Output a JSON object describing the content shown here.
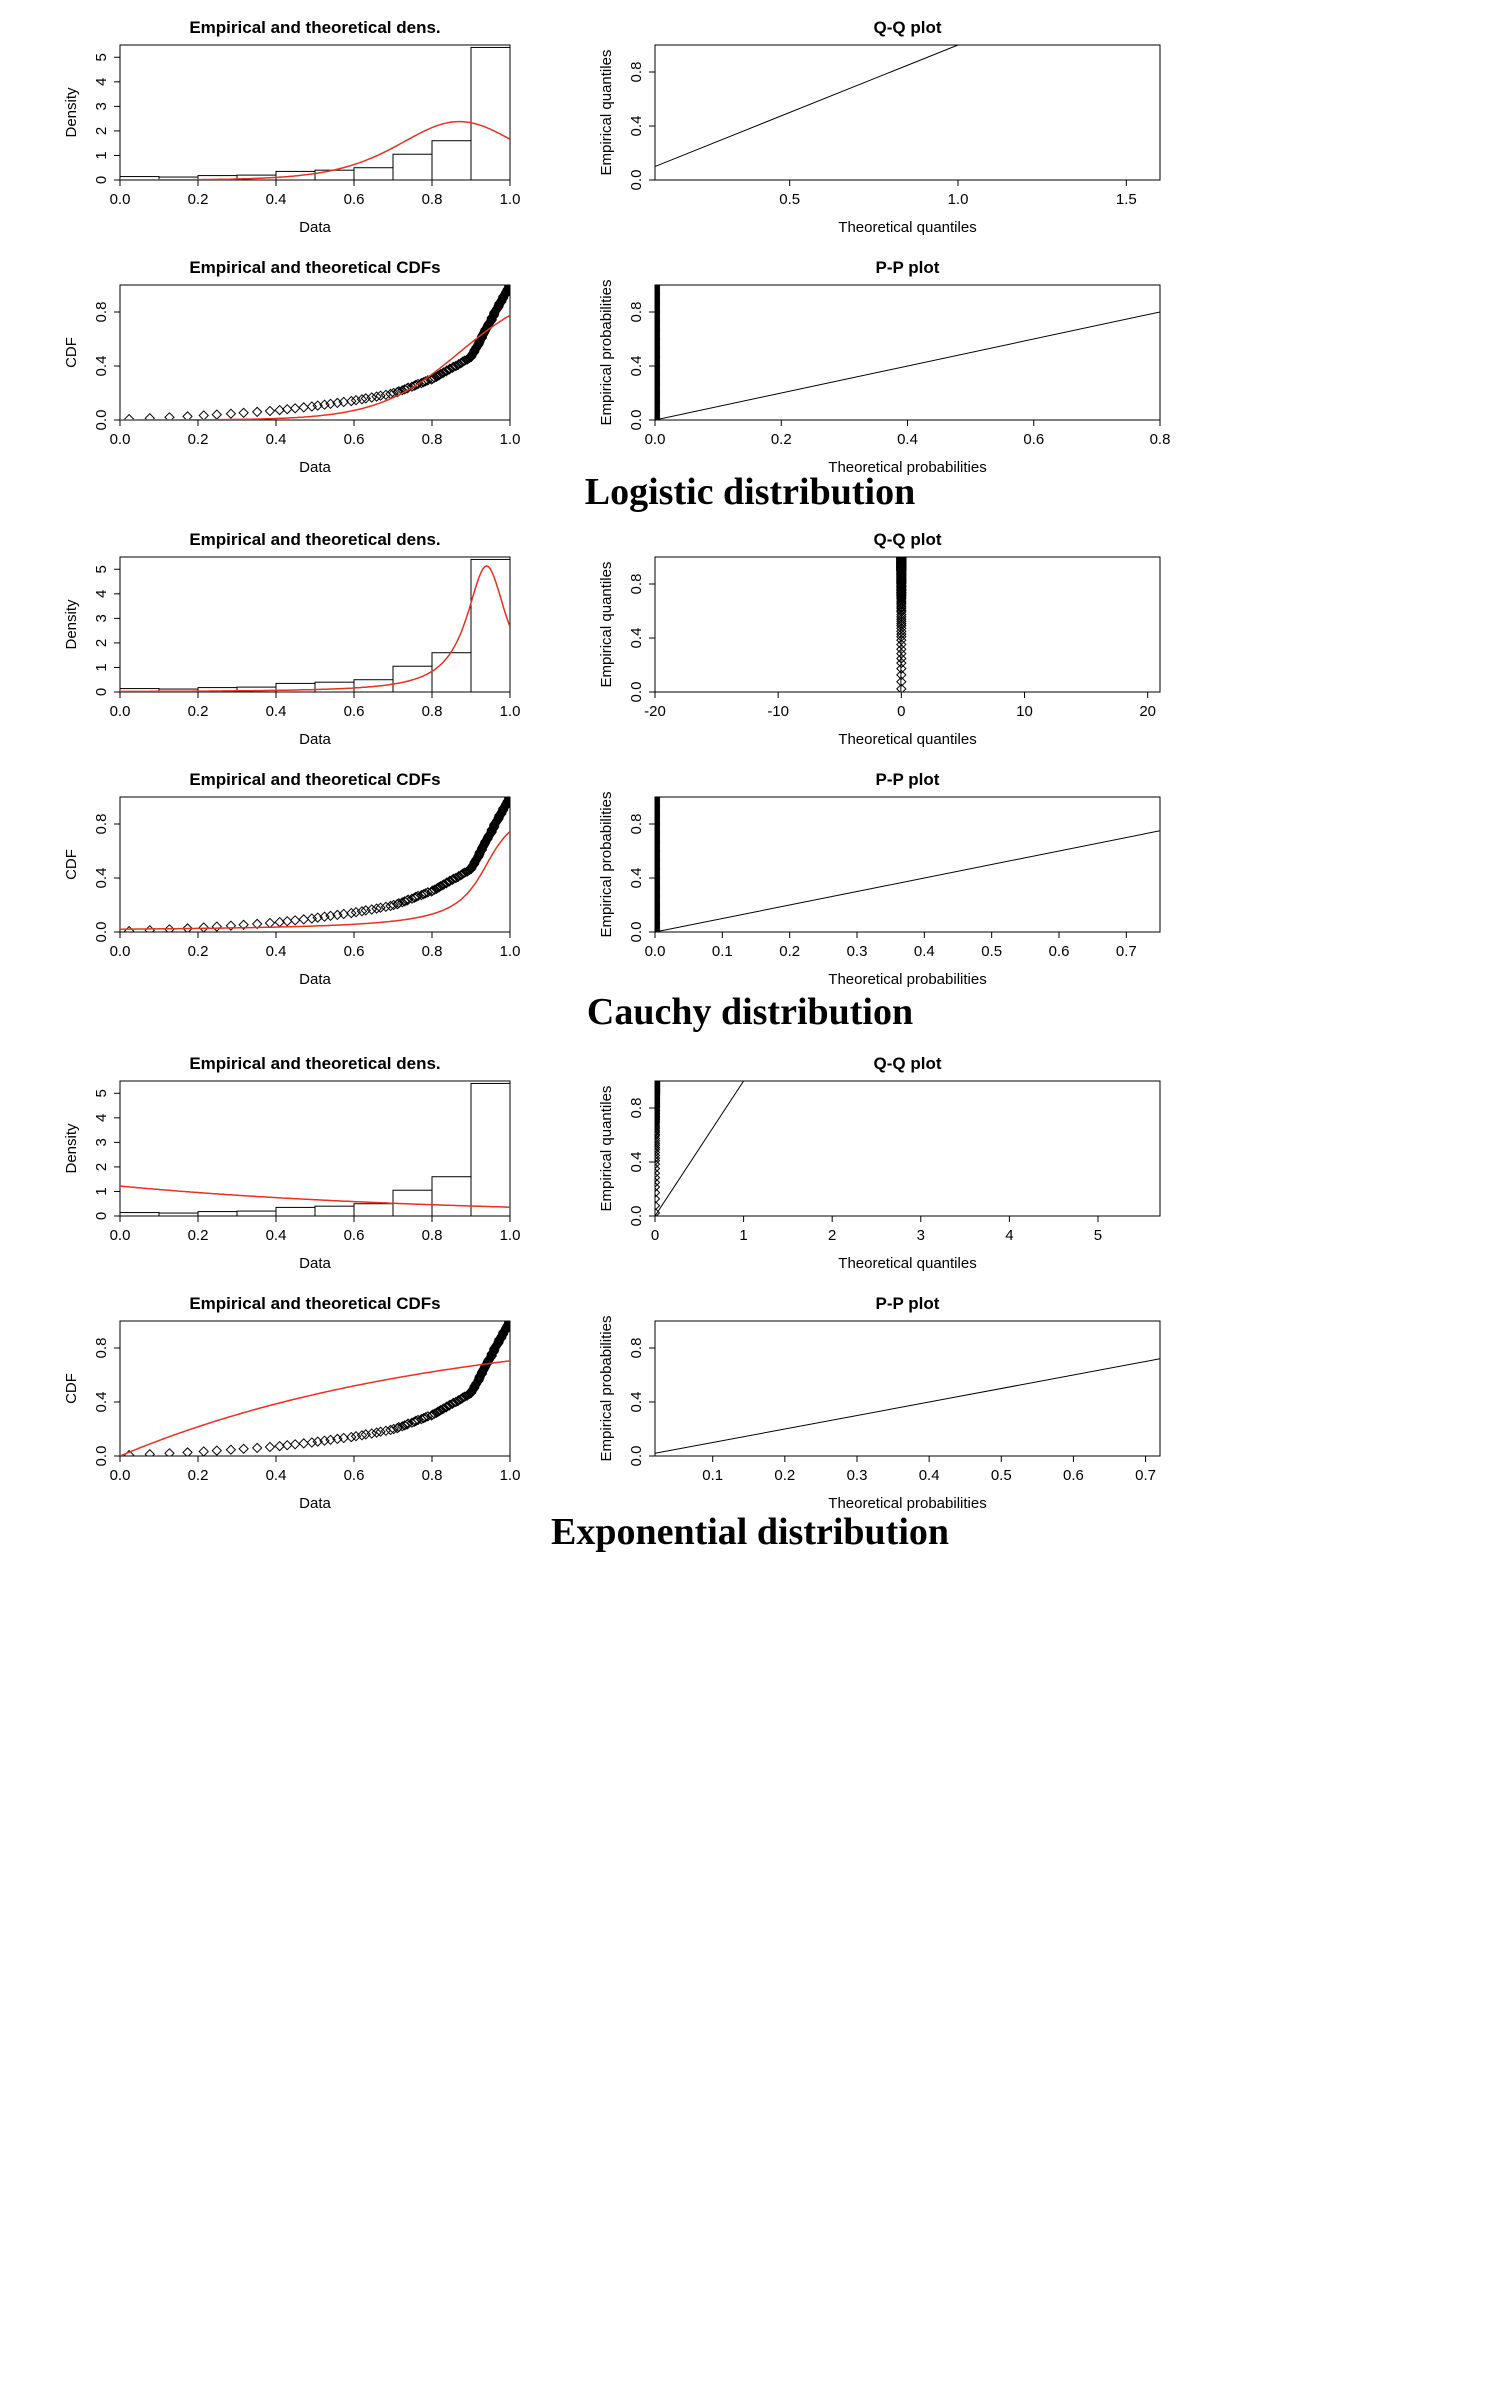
{
  "figure": {
    "colors": {
      "theory": "#e8311f",
      "ink": "#000000",
      "paper": "#ffffff"
    },
    "groups": [
      {
        "name": "logistic",
        "label": "Logistic distribution",
        "density": {
          "type": "bar",
          "title": "Empirical and theoretical dens.",
          "xlabel": "Data",
          "ylabel": "Density",
          "xlim": [
            0,
            1
          ],
          "ylim": [
            0,
            5.5
          ],
          "xticks": [
            "0.0",
            "0.2",
            "0.4",
            "0.6",
            "0.8",
            "1.0"
          ],
          "yticks": [
            "0",
            "1",
            "2",
            "3",
            "4",
            "5"
          ],
          "bins": [
            0,
            0.1,
            0.2,
            0.3,
            0.4,
            0.5,
            0.6,
            0.7,
            0.8,
            0.9,
            1.0
          ],
          "values": [
            0.14,
            0.12,
            0.18,
            0.2,
            0.35,
            0.4,
            0.5,
            1.05,
            1.6,
            5.4
          ],
          "curve": {
            "kind": "logistic",
            "mu": 0.87,
            "s": 0.105
          }
        },
        "qq": {
          "type": "scatter",
          "title": "Q-Q plot",
          "xlabel": "Theoretical quantiles",
          "ylabel": "Empirical quantiles",
          "xlim": [
            0.1,
            1.6
          ],
          "ylim": [
            0,
            1
          ],
          "xticks": [
            "0.5",
            "1.0",
            "1.5"
          ],
          "yticks": [
            "0.0",
            "0.4",
            "0.8"
          ],
          "line": [
            [
              0.08,
              0.08
            ],
            [
              1.0,
              1.0
            ]
          ],
          "shape": {
            "kind": "qq",
            "ref": "logistic",
            "mu": 0.87,
            "s": 0.105,
            "n": 150
          }
        },
        "cdf": {
          "type": "line",
          "title": "Empirical and theoretical CDFs",
          "xlabel": "Data",
          "ylabel": "CDF",
          "xlim": [
            0,
            1
          ],
          "ylim": [
            0,
            1
          ],
          "xticks": [
            "0.0",
            "0.2",
            "0.4",
            "0.6",
            "0.8",
            "1.0"
          ],
          "yticks": [
            "0.0",
            "0.4",
            "0.8"
          ],
          "curve": {
            "kind": "logistic",
            "mu": 0.87,
            "s": 0.105
          }
        },
        "pp": {
          "type": "scatter",
          "title": "P-P plot",
          "xlabel": "Theoretical probabilities",
          "ylabel": "Empirical probabilities",
          "xlim": [
            0,
            0.8
          ],
          "ylim": [
            0,
            1
          ],
          "xticks": [
            "0.0",
            "0.2",
            "0.4",
            "0.6",
            "0.8"
          ],
          "yticks": [
            "0.0",
            "0.4",
            "0.8"
          ],
          "line": [
            [
              0,
              0
            ],
            [
              0.8,
              0.8
            ]
          ],
          "shape": {
            "kind": "pp",
            "ref": "logistic",
            "mu": 0.87,
            "s": 0.105,
            "n": 150
          }
        }
      },
      {
        "name": "cauchy",
        "label": "Cauchy distribution",
        "density": {
          "type": "bar",
          "title": "Empirical and theoretical dens.",
          "xlabel": "Data",
          "ylabel": "Density",
          "xlim": [
            0,
            1
          ],
          "ylim": [
            0,
            5.5
          ],
          "xticks": [
            "0.0",
            "0.2",
            "0.4",
            "0.6",
            "0.8",
            "1.0"
          ],
          "yticks": [
            "0",
            "1",
            "2",
            "3",
            "4",
            "5"
          ],
          "bins": [
            0,
            0.1,
            0.2,
            0.3,
            0.4,
            0.5,
            0.6,
            0.7,
            0.8,
            0.9,
            1.0
          ],
          "values": [
            0.14,
            0.12,
            0.18,
            0.2,
            0.35,
            0.4,
            0.5,
            1.05,
            1.6,
            5.4
          ],
          "curve": {
            "kind": "cauchy",
            "x0": 0.94,
            "gamma": 0.062
          }
        },
        "qq": {
          "type": "scatter",
          "title": "Q-Q plot",
          "xlabel": "Theoretical quantiles",
          "ylabel": "Empirical quantiles",
          "xlim": [
            -20,
            21
          ],
          "ylim": [
            0,
            1
          ],
          "xticks": [
            "-20",
            "-10",
            "0",
            "10",
            "20"
          ],
          "yticks": [
            "0.0",
            "0.4",
            "0.8"
          ],
          "line": [
            [
              -0.2,
              -5
            ],
            [
              0.6,
              20
            ]
          ],
          "shape": {
            "kind": "qq",
            "ref": "cauchy",
            "x0": 0.94,
            "gamma": 0.062,
            "n": 150
          }
        },
        "cdf": {
          "type": "line",
          "title": "Empirical and theoretical CDFs",
          "xlabel": "Data",
          "ylabel": "CDF",
          "xlim": [
            0,
            1
          ],
          "ylim": [
            0,
            1
          ],
          "xticks": [
            "0.0",
            "0.2",
            "0.4",
            "0.6",
            "0.8",
            "1.0"
          ],
          "yticks": [
            "0.0",
            "0.4",
            "0.8"
          ],
          "curve": {
            "kind": "cauchy",
            "x0": 0.94,
            "gamma": 0.062
          }
        },
        "pp": {
          "type": "scatter",
          "title": "P-P plot",
          "xlabel": "Theoretical probabilities",
          "ylabel": "Empirical probabilities",
          "xlim": [
            0,
            0.75
          ],
          "ylim": [
            0,
            1
          ],
          "xticks": [
            "0.0",
            "0.1",
            "0.2",
            "0.3",
            "0.4",
            "0.5",
            "0.6",
            "0.7"
          ],
          "yticks": [
            "0.0",
            "0.4",
            "0.8"
          ],
          "line": [
            [
              0,
              0
            ],
            [
              0.75,
              0.75
            ]
          ],
          "shape": {
            "kind": "pp",
            "ref": "cauchy",
            "x0": 0.94,
            "gamma": 0.062,
            "n": 150
          }
        }
      },
      {
        "name": "exponential",
        "label": "Exponential distribution",
        "density": {
          "type": "bar",
          "title": "Empirical and theoretical dens.",
          "xlabel": "Data",
          "ylabel": "Density",
          "xlim": [
            0,
            1
          ],
          "ylim": [
            0,
            5.5
          ],
          "xticks": [
            "0.0",
            "0.2",
            "0.4",
            "0.6",
            "0.8",
            "1.0"
          ],
          "yticks": [
            "0",
            "1",
            "2",
            "3",
            "4",
            "5"
          ],
          "bins": [
            0,
            0.1,
            0.2,
            0.3,
            0.4,
            0.5,
            0.6,
            0.7,
            0.8,
            0.9,
            1.0
          ],
          "values": [
            0.14,
            0.12,
            0.18,
            0.2,
            0.35,
            0.4,
            0.5,
            1.05,
            1.6,
            5.4
          ],
          "curve": {
            "kind": "exponential",
            "rate": 1.22
          }
        },
        "qq": {
          "type": "scatter",
          "title": "Q-Q plot",
          "xlabel": "Theoretical quantiles",
          "ylabel": "Empirical quantiles",
          "xlim": [
            0,
            5.7
          ],
          "ylim": [
            0,
            1
          ],
          "xticks": [
            "0",
            "1",
            "2",
            "3",
            "4",
            "5"
          ],
          "yticks": [
            "0.0",
            "0.4",
            "0.8"
          ],
          "line": [
            [
              0,
              0
            ],
            [
              1.0,
              1.0
            ]
          ],
          "shape": {
            "kind": "qq",
            "ref": "exponential",
            "rate": 1.22,
            "n": 150
          }
        },
        "cdf": {
          "type": "line",
          "title": "Empirical and theoretical CDFs",
          "xlabel": "Data",
          "ylabel": "CDF",
          "xlim": [
            0,
            1
          ],
          "ylim": [
            0,
            1
          ],
          "xticks": [
            "0.0",
            "0.2",
            "0.4",
            "0.6",
            "0.8",
            "1.0"
          ],
          "yticks": [
            "0.0",
            "0.4",
            "0.8"
          ],
          "curve": {
            "kind": "exponential",
            "rate": 1.22
          }
        },
        "pp": {
          "type": "scatter",
          "title": "P-P plot",
          "xlabel": "Theoretical probabilities",
          "ylabel": "Empirical probabilities",
          "xlim": [
            0.02,
            0.72
          ],
          "ylim": [
            0,
            1
          ],
          "xticks": [
            "0.1",
            "0.2",
            "0.3",
            "0.4",
            "0.5",
            "0.6",
            "0.7"
          ],
          "yticks": [
            "0.0",
            "0.4",
            "0.8"
          ],
          "line": [
            [
              0,
              0
            ],
            [
              0.72,
              0.72
            ]
          ],
          "shape": {
            "kind": "pp",
            "ref": "exponential",
            "rate": 1.22,
            "n": 150
          }
        }
      }
    ]
  },
  "chart_data": [
    {
      "type": "bar",
      "group": "Logistic distribution",
      "title": "Empirical and theoretical dens.",
      "xlabel": "Data",
      "ylabel": "Density",
      "categories": [
        "0.0-0.1",
        "0.1-0.2",
        "0.2-0.3",
        "0.3-0.4",
        "0.4-0.5",
        "0.5-0.6",
        "0.6-0.7",
        "0.7-0.8",
        "0.8-0.9",
        "0.9-1.0"
      ],
      "values": [
        0.14,
        0.12,
        0.18,
        0.2,
        0.35,
        0.4,
        0.5,
        1.05,
        1.6,
        5.4
      ],
      "ylim": [
        0,
        5.5
      ]
    },
    {
      "type": "scatter",
      "group": "Logistic distribution",
      "title": "Q-Q plot",
      "xlabel": "Theoretical quantiles",
      "ylabel": "Empirical quantiles",
      "xlim": [
        0.1,
        1.6
      ],
      "ylim": [
        0,
        1
      ]
    },
    {
      "type": "line",
      "group": "Logistic distribution",
      "title": "Empirical and theoretical CDFs",
      "xlabel": "Data",
      "ylabel": "CDF",
      "xlim": [
        0,
        1
      ],
      "ylim": [
        0,
        1
      ]
    },
    {
      "type": "scatter",
      "group": "Logistic distribution",
      "title": "P-P plot",
      "xlabel": "Theoretical probabilities",
      "ylabel": "Empirical probabilities",
      "xlim": [
        0,
        0.8
      ],
      "ylim": [
        0,
        1
      ]
    },
    {
      "type": "bar",
      "group": "Cauchy distribution",
      "title": "Empirical and theoretical dens.",
      "xlabel": "Data",
      "ylabel": "Density",
      "categories": [
        "0.0-0.1",
        "0.1-0.2",
        "0.2-0.3",
        "0.3-0.4",
        "0.4-0.5",
        "0.5-0.6",
        "0.6-0.7",
        "0.7-0.8",
        "0.8-0.9",
        "0.9-1.0"
      ],
      "values": [
        0.14,
        0.12,
        0.18,
        0.2,
        0.35,
        0.4,
        0.5,
        1.05,
        1.6,
        5.4
      ],
      "ylim": [
        0,
        5.5
      ]
    },
    {
      "type": "scatter",
      "group": "Cauchy distribution",
      "title": "Q-Q plot",
      "xlabel": "Theoretical quantiles",
      "ylabel": "Empirical quantiles",
      "xlim": [
        -20,
        21
      ],
      "ylim": [
        0,
        1
      ]
    },
    {
      "type": "line",
      "group": "Cauchy distribution",
      "title": "Empirical and theoretical CDFs",
      "xlabel": "Data",
      "ylabel": "CDF",
      "xlim": [
        0,
        1
      ],
      "ylim": [
        0,
        1
      ]
    },
    {
      "type": "scatter",
      "group": "Cauchy distribution",
      "title": "P-P plot",
      "xlabel": "Theoretical probabilities",
      "ylabel": "Empirical probabilities",
      "xlim": [
        0,
        0.75
      ],
      "ylim": [
        0,
        1
      ]
    },
    {
      "type": "bar",
      "group": "Exponential distribution",
      "title": "Empirical and theoretical dens.",
      "xlabel": "Data",
      "ylabel": "Density",
      "categories": [
        "0.0-0.1",
        "0.1-0.2",
        "0.2-0.3",
        "0.3-0.4",
        "0.4-0.5",
        "0.5-0.6",
        "0.6-0.7",
        "0.7-0.8",
        "0.8-0.9",
        "0.9-1.0"
      ],
      "values": [
        0.14,
        0.12,
        0.18,
        0.2,
        0.35,
        0.4,
        0.5,
        1.05,
        1.6,
        5.4
      ],
      "ylim": [
        0,
        5.5
      ]
    },
    {
      "type": "scatter",
      "group": "Exponential distribution",
      "title": "Q-Q plot",
      "xlabel": "Theoretical quantiles",
      "ylabel": "Empirical quantiles",
      "xlim": [
        0,
        5.7
      ],
      "ylim": [
        0,
        1
      ]
    },
    {
      "type": "line",
      "group": "Exponential distribution",
      "title": "Empirical and theoretical CDFs",
      "xlabel": "Data",
      "ylabel": "CDF",
      "xlim": [
        0,
        1
      ],
      "ylim": [
        0,
        1
      ]
    },
    {
      "type": "scatter",
      "group": "Exponential distribution",
      "title": "P-P plot",
      "xlabel": "Theoretical probabilities",
      "ylabel": "Empirical probabilities",
      "xlim": [
        0.02,
        0.72
      ],
      "ylim": [
        0,
        1
      ]
    }
  ]
}
